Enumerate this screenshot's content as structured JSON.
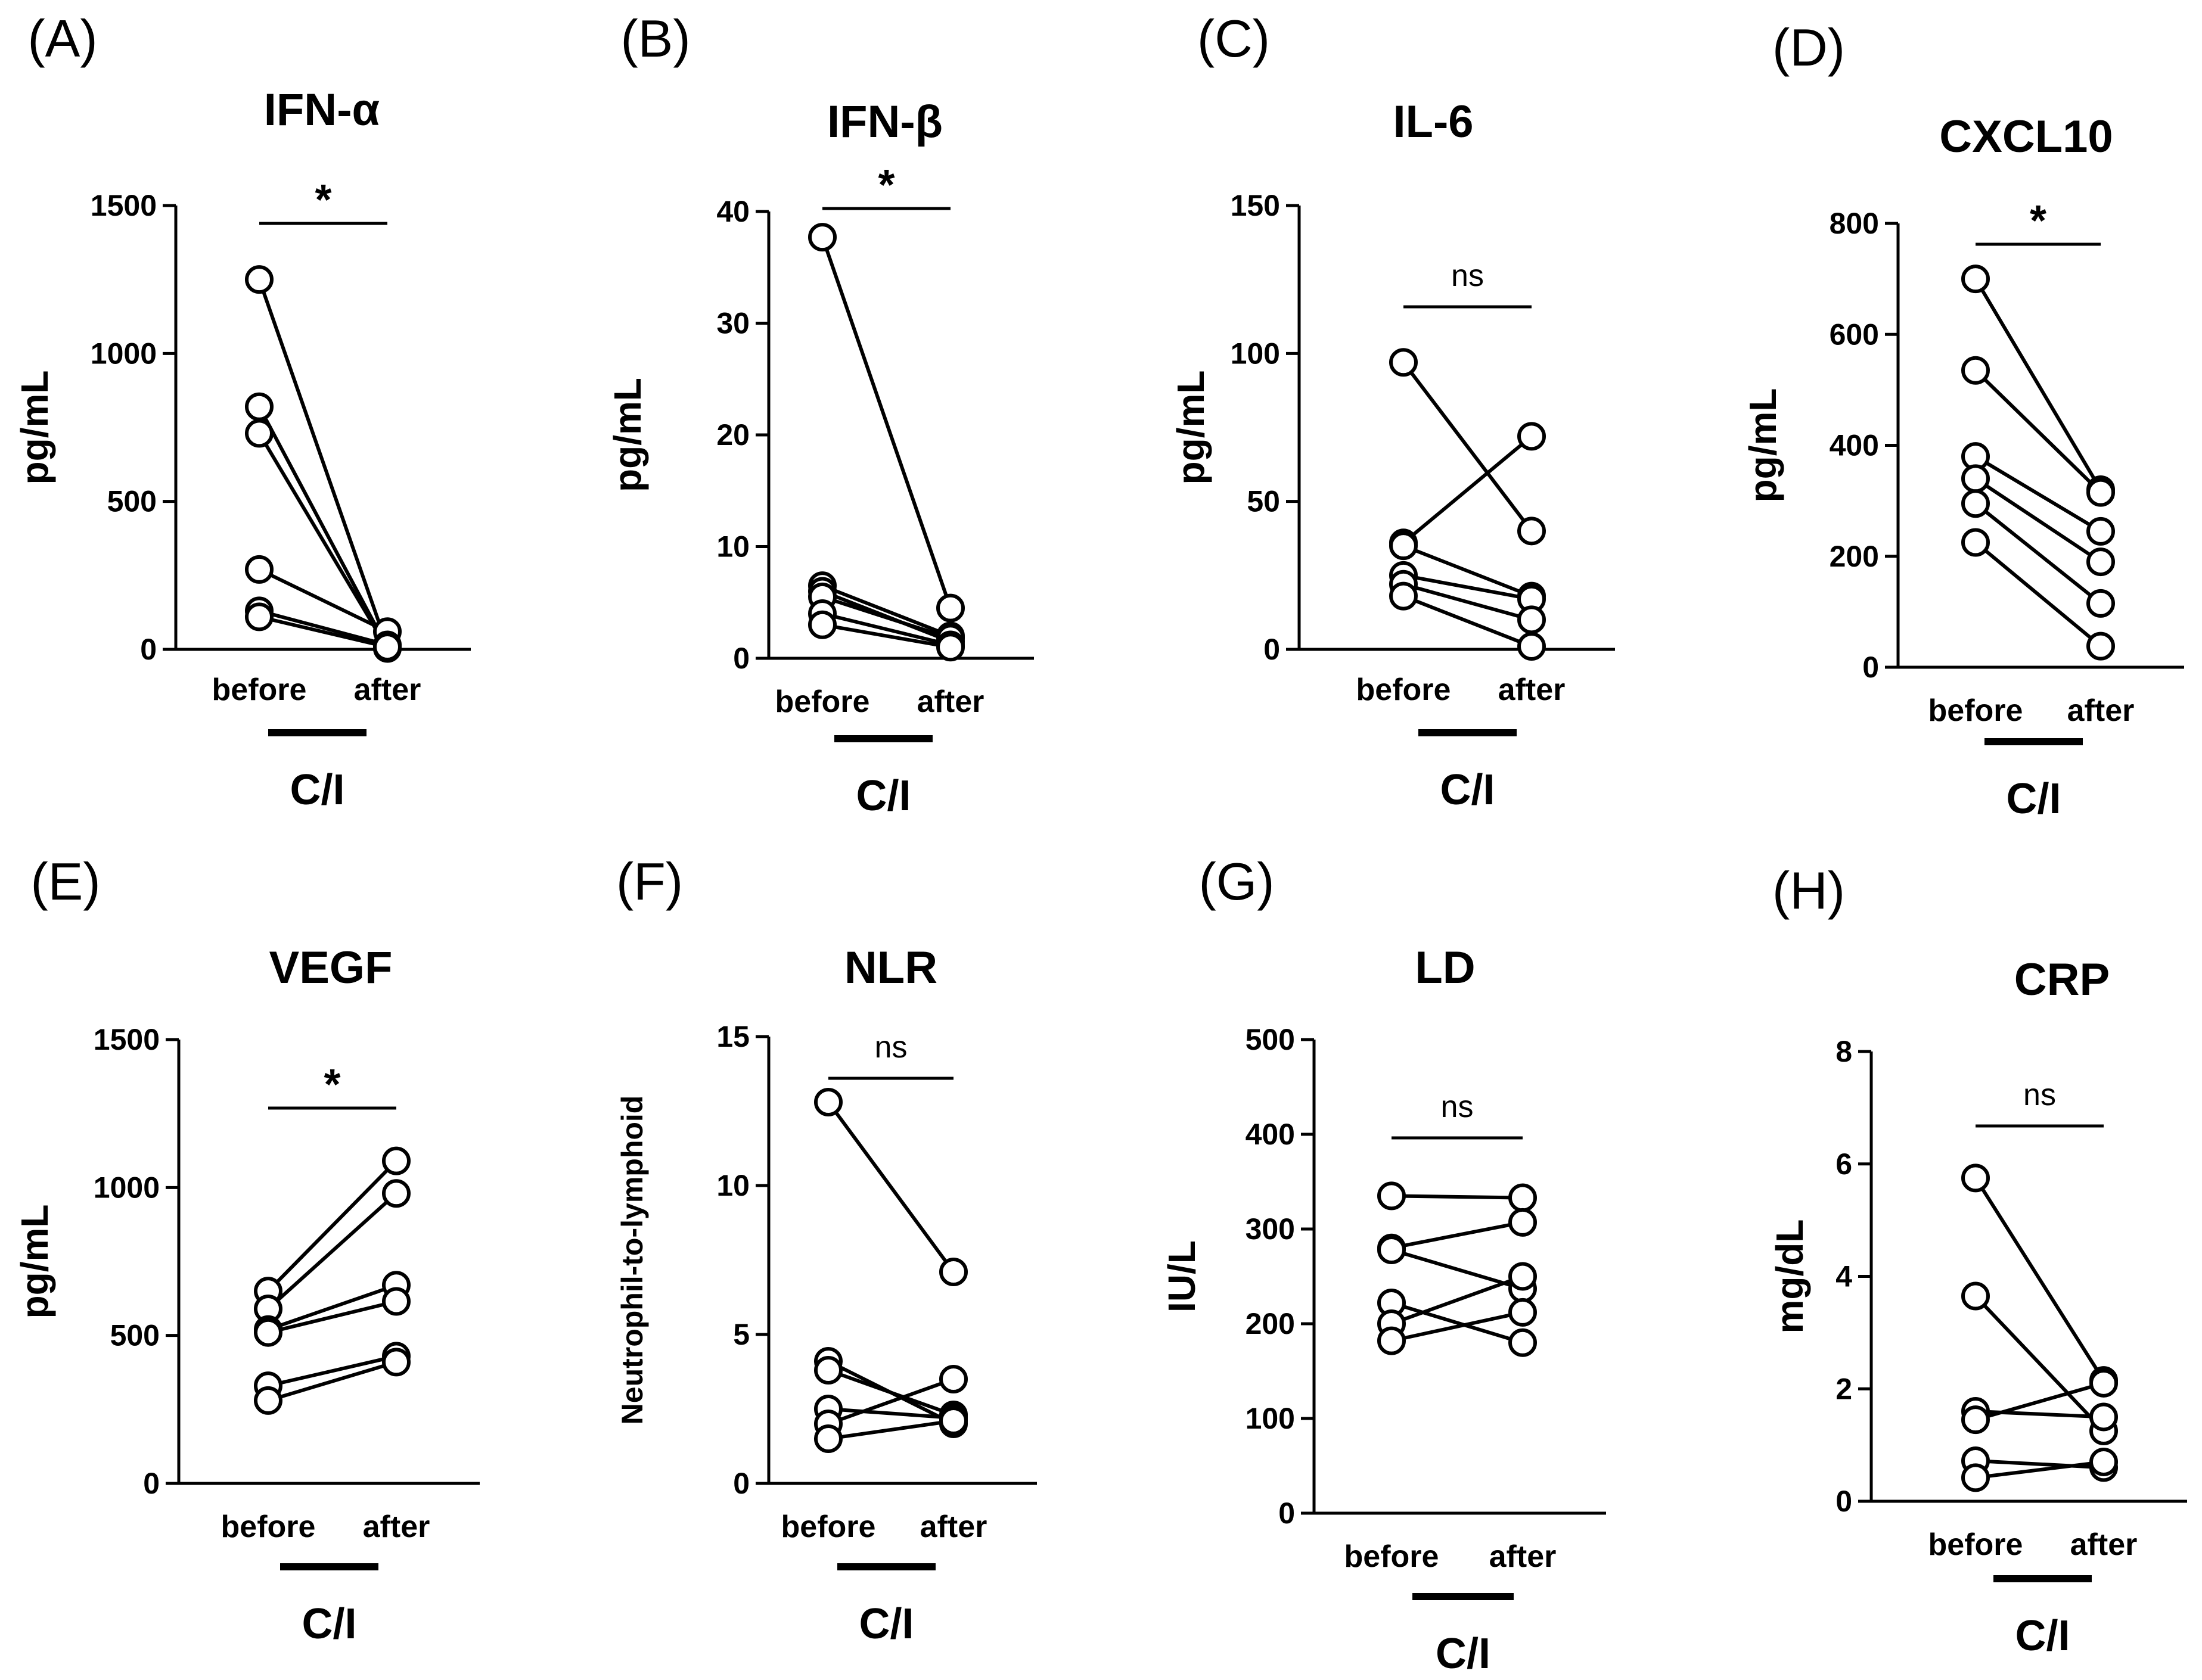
{
  "chart_data": [
    {
      "type": "scatter",
      "panel": "(A)",
      "title": "IFN-α",
      "ylabel": "pg/mL",
      "xlabel": "C/I",
      "categories": [
        "before",
        "after"
      ],
      "ylim": [
        0,
        1500
      ],
      "yticks": [
        0,
        500,
        1000,
        1500
      ],
      "significance": "*",
      "pairs": [
        [
          1250,
          10
        ],
        [
          820,
          5
        ],
        [
          730,
          3
        ],
        [
          270,
          60
        ],
        [
          130,
          15
        ],
        [
          110,
          8
        ]
      ]
    },
    {
      "type": "scatter",
      "panel": "(B)",
      "title": "IFN-β",
      "ylabel": "pg/mL",
      "xlabel": "C/I",
      "categories": [
        "before",
        "after"
      ],
      "ylim": [
        0,
        40
      ],
      "yticks": [
        0,
        10,
        20,
        30,
        40
      ],
      "significance": "*",
      "pairs": [
        [
          37.7,
          4.5
        ],
        [
          6.5,
          2.0
        ],
        [
          6.0,
          1.5
        ],
        [
          5.5,
          1.8
        ],
        [
          4.0,
          1.2
        ],
        [
          3.0,
          1.0
        ]
      ]
    },
    {
      "type": "scatter",
      "panel": "(C)",
      "title": "IL-6",
      "ylabel": "pg/mL",
      "xlabel": "C/I",
      "categories": [
        "before",
        "after"
      ],
      "ylim": [
        0,
        150
      ],
      "yticks": [
        0,
        50,
        100,
        150
      ],
      "significance": "ns",
      "pairs": [
        [
          97,
          40
        ],
        [
          36,
          72
        ],
        [
          35,
          18
        ],
        [
          25,
          17
        ],
        [
          22,
          10
        ],
        [
          18,
          1
        ]
      ]
    },
    {
      "type": "scatter",
      "panel": "(D)",
      "title": "CXCL10",
      "ylabel": "pg/mL",
      "xlabel": "C/I",
      "categories": [
        "before",
        "after"
      ],
      "ylim": [
        0,
        800
      ],
      "yticks": [
        0,
        200,
        400,
        600,
        800
      ],
      "significance": "*",
      "pairs": [
        [
          700,
          320
        ],
        [
          535,
          315
        ],
        [
          380,
          245
        ],
        [
          340,
          190
        ],
        [
          295,
          115
        ],
        [
          225,
          38
        ]
      ]
    },
    {
      "type": "scatter",
      "panel": "(E)",
      "title": "VEGF",
      "ylabel": "pg/mL",
      "xlabel": "C/I",
      "categories": [
        "before",
        "after"
      ],
      "ylim": [
        0,
        1500
      ],
      "yticks": [
        0,
        500,
        1000,
        1500
      ],
      "significance": "*",
      "pairs": [
        [
          650,
          1090
        ],
        [
          590,
          980
        ],
        [
          520,
          670
        ],
        [
          510,
          615
        ],
        [
          330,
          430
        ],
        [
          280,
          410
        ]
      ]
    },
    {
      "type": "scatter",
      "panel": "(F)",
      "title": "NLR",
      "ylabel": "Neutrophil-to-lymphoid",
      "xlabel": "C/I",
      "categories": [
        "before",
        "after"
      ],
      "ylim": [
        0,
        15
      ],
      "yticks": [
        0,
        5,
        10,
        15
      ],
      "significance": "ns",
      "pairs": [
        [
          12.8,
          7.1
        ],
        [
          4.1,
          2.0
        ],
        [
          3.8,
          2.3
        ],
        [
          2.5,
          2.2
        ],
        [
          2.0,
          3.5
        ],
        [
          1.5,
          2.1
        ]
      ]
    },
    {
      "type": "scatter",
      "panel": "(G)",
      "title": "LD",
      "ylabel": "IU/L",
      "xlabel": "C/I",
      "categories": [
        "before",
        "after"
      ],
      "ylim": [
        0,
        500
      ],
      "yticks": [
        0,
        100,
        200,
        300,
        400,
        500
      ],
      "significance": "ns",
      "pairs": [
        [
          335,
          333
        ],
        [
          280,
          307
        ],
        [
          278,
          237
        ],
        [
          222,
          180
        ],
        [
          200,
          250
        ],
        [
          182,
          212
        ]
      ]
    },
    {
      "type": "scatter",
      "panel": "(H)",
      "title": "CRP",
      "ylabel": "mg/dL",
      "xlabel": "C/I",
      "categories": [
        "before",
        "after"
      ],
      "ylim": [
        0,
        8
      ],
      "yticks": [
        0,
        2,
        4,
        6,
        8
      ],
      "significance": "ns",
      "pairs": [
        [
          5.75,
          2.15
        ],
        [
          3.65,
          1.25
        ],
        [
          1.6,
          1.5
        ],
        [
          1.45,
          2.1
        ],
        [
          0.72,
          0.6
        ],
        [
          0.42,
          0.7
        ]
      ]
    }
  ]
}
